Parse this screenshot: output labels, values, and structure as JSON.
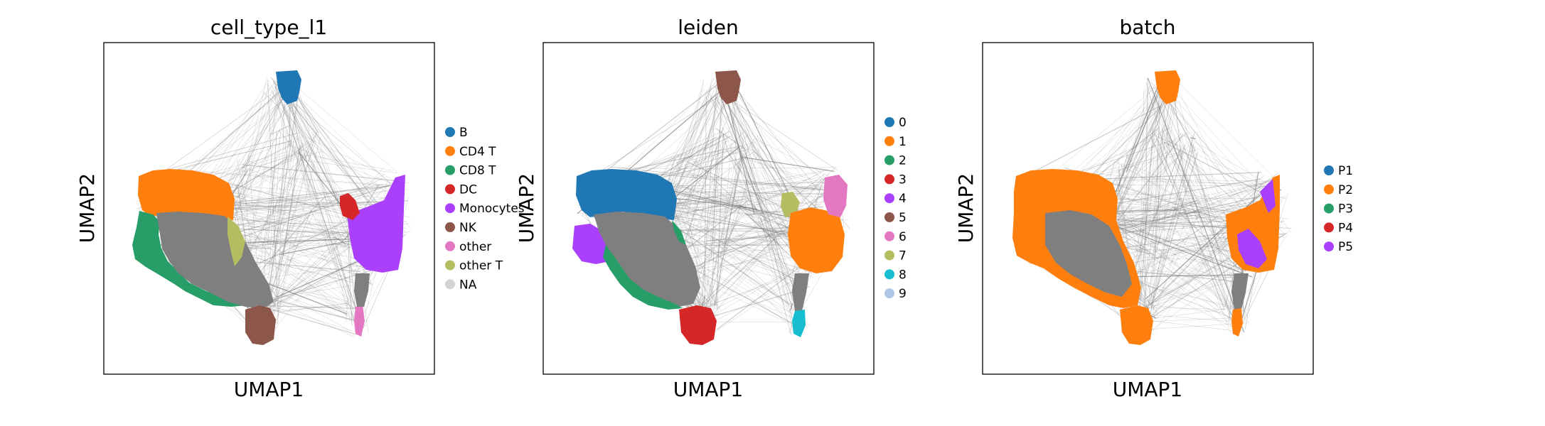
{
  "figure": {
    "type": "scatter",
    "embedding": "UMAP"
  },
  "chart_data": [
    {
      "type": "scatter",
      "title": "cell_type_l1",
      "xlabel": "UMAP1",
      "ylabel": "UMAP2",
      "show_ticks": false,
      "legend_placement": "right",
      "legend": [
        {
          "label": "B",
          "color": "#1f77b4"
        },
        {
          "label": "CD4 T",
          "color": "#ff7f0e"
        },
        {
          "label": "CD8 T",
          "color": "#279e68"
        },
        {
          "label": "DC",
          "color": "#d62728"
        },
        {
          "label": "Monocytes",
          "color": "#aa40fc"
        },
        {
          "label": "NK",
          "color": "#8c564b"
        },
        {
          "label": "other",
          "color": "#e377c2"
        },
        {
          "label": "other T",
          "color": "#b5bd61"
        },
        {
          "label": "NA",
          "color": "#d3d3d3"
        }
      ]
    },
    {
      "type": "scatter",
      "title": "leiden",
      "xlabel": "UMAP1",
      "ylabel": "UMAP2",
      "show_ticks": false,
      "legend_placement": "right",
      "legend": [
        {
          "label": "0",
          "color": "#1f77b4"
        },
        {
          "label": "1",
          "color": "#ff7f0e"
        },
        {
          "label": "2",
          "color": "#279e68"
        },
        {
          "label": "3",
          "color": "#d62728"
        },
        {
          "label": "4",
          "color": "#aa40fc"
        },
        {
          "label": "5",
          "color": "#8c564b"
        },
        {
          "label": "6",
          "color": "#e377c2"
        },
        {
          "label": "7",
          "color": "#b5bd61"
        },
        {
          "label": "8",
          "color": "#17becf"
        },
        {
          "label": "9",
          "color": "#aec7e8"
        }
      ]
    },
    {
      "type": "scatter",
      "title": "batch",
      "xlabel": "UMAP1",
      "ylabel": "UMAP2",
      "show_ticks": false,
      "legend_placement": "right",
      "legend": [
        {
          "label": "P1",
          "color": "#1f77b4"
        },
        {
          "label": "P2",
          "color": "#ff7f0e"
        },
        {
          "label": "P3",
          "color": "#279e68"
        },
        {
          "label": "P4",
          "color": "#d62728"
        },
        {
          "label": "P5",
          "color": "#aa40fc"
        }
      ]
    }
  ],
  "colors": {
    "edges": "#7f7f7f",
    "frame": "#000000",
    "background": "#ffffff"
  }
}
